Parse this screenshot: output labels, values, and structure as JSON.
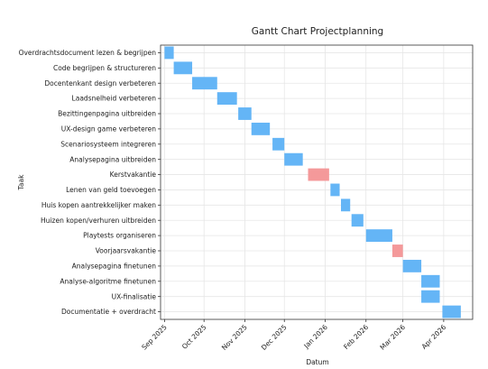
{
  "chart_data": {
    "type": "gantt",
    "title": "Gantt Chart Projectplanning",
    "xlabel": "Datum",
    "ylabel": "Taak",
    "grid": true,
    "x_tick_labels": [
      "Sep 2025",
      "Oct 2025",
      "Nov 2025",
      "Dec 2025",
      "Jan 2026",
      "Feb 2026",
      "Mar 2026",
      "Apr 2026"
    ],
    "x_tick_dates": [
      "2025-09-01",
      "2025-10-01",
      "2025-11-01",
      "2025-12-01",
      "2026-01-01",
      "2026-02-01",
      "2026-03-01",
      "2026-04-01"
    ],
    "xlim": [
      "2025-08-29",
      "2026-04-23"
    ],
    "colors": {
      "task": "#64b5f6",
      "vacation": "#f4999a"
    },
    "tasks": [
      {
        "label": "Overdrachtsdocument lezen & begrijpen",
        "start": "2025-09-01",
        "end": "2025-09-08",
        "kind": "task"
      },
      {
        "label": "Code begrijpen & structureren",
        "start": "2025-09-08",
        "end": "2025-09-22",
        "kind": "task"
      },
      {
        "label": "Docentenkant design verbeteren",
        "start": "2025-09-22",
        "end": "2025-10-11",
        "kind": "task"
      },
      {
        "label": "Laadsnelheid verbeteren",
        "start": "2025-10-11",
        "end": "2025-10-26",
        "kind": "task"
      },
      {
        "label": "Bezittingenpagina uitbreiden",
        "start": "2025-10-27",
        "end": "2025-11-06",
        "kind": "task"
      },
      {
        "label": "UX-design game verbeteren",
        "start": "2025-11-06",
        "end": "2025-11-20",
        "kind": "task"
      },
      {
        "label": "Scenariosysteem integreren",
        "start": "2025-11-22",
        "end": "2025-12-01",
        "kind": "task"
      },
      {
        "label": "Analysepagina uitbreiden",
        "start": "2025-12-01",
        "end": "2025-12-15",
        "kind": "task"
      },
      {
        "label": "Kerstvakantie",
        "start": "2025-12-19",
        "end": "2026-01-04",
        "kind": "vacation"
      },
      {
        "label": "Lenen van geld toevoegen",
        "start": "2026-01-05",
        "end": "2026-01-12",
        "kind": "task"
      },
      {
        "label": "Huis kopen aantrekkelijker maken",
        "start": "2026-01-13",
        "end": "2026-01-20",
        "kind": "task"
      },
      {
        "label": "Huizen kopen/verhuren uitbreiden",
        "start": "2026-01-21",
        "end": "2026-01-30",
        "kind": "task"
      },
      {
        "label": "Playtests organiseren",
        "start": "2026-02-01",
        "end": "2026-02-21",
        "kind": "task"
      },
      {
        "label": "Voorjaarsvakantie",
        "start": "2026-02-21",
        "end": "2026-03-01",
        "kind": "vacation"
      },
      {
        "label": "Analysepagina finetunen",
        "start": "2026-03-01",
        "end": "2026-03-15",
        "kind": "task"
      },
      {
        "label": "Analyse-algoritme finetunen",
        "start": "2026-03-15",
        "end": "2026-03-29",
        "kind": "task"
      },
      {
        "label": "UX-finalisatie",
        "start": "2026-03-15",
        "end": "2026-03-29",
        "kind": "task"
      },
      {
        "label": "Documentatie + overdracht",
        "start": "2026-03-31",
        "end": "2026-04-14",
        "kind": "task"
      }
    ]
  }
}
